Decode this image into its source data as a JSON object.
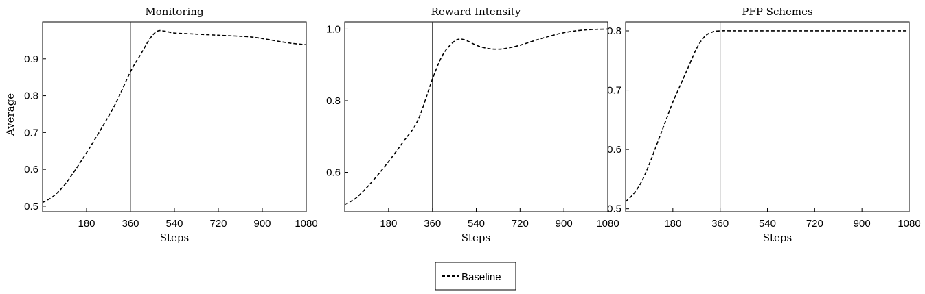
{
  "legend": {
    "entries": [
      {
        "label": "Baseline",
        "style": "dashed",
        "color": "#000000"
      }
    ]
  },
  "chart_data": [
    {
      "type": "line",
      "title": "Monitoring",
      "xlabel": "Steps",
      "ylabel": "Average",
      "xlim": [
        0,
        1080
      ],
      "ylim": [
        0.485,
        1.0
      ],
      "xticks": [
        180,
        360,
        540,
        720,
        900,
        1080
      ],
      "yticks": [
        0.5,
        0.6,
        0.7,
        0.8,
        0.9
      ],
      "xtick_labels": [
        "180",
        "360",
        "540",
        "720",
        "900",
        "1080"
      ],
      "ytick_labels": [
        "0.5",
        "0.6",
        "0.7",
        "0.8",
        "0.9"
      ],
      "vline": 360,
      "series": [
        {
          "name": "Baseline",
          "x": [
            0,
            40,
            80,
            120,
            180,
            240,
            300,
            360,
            400,
            440,
            470,
            500,
            540,
            600,
            720,
            840,
            900,
            960,
            1020,
            1080
          ],
          "y": [
            0.51,
            0.525,
            0.55,
            0.585,
            0.645,
            0.71,
            0.78,
            0.865,
            0.91,
            0.955,
            0.975,
            0.975,
            0.97,
            0.968,
            0.964,
            0.96,
            0.955,
            0.948,
            0.942,
            0.938
          ]
        }
      ]
    },
    {
      "type": "line",
      "title": "Reward Intensity",
      "xlabel": "Steps",
      "ylabel": "",
      "xlim": [
        0,
        1080
      ],
      "ylim": [
        0.49,
        1.02
      ],
      "xticks": [
        180,
        360,
        540,
        720,
        900,
        1080
      ],
      "yticks": [
        0.6,
        0.8,
        1.0
      ],
      "xtick_labels": [
        "180",
        "360",
        "540",
        "720",
        "900",
        "1080"
      ],
      "ytick_labels": [
        "0.6",
        "0.8",
        "1.0"
      ],
      "vline": 360,
      "series": [
        {
          "name": "Baseline",
          "x": [
            0,
            40,
            80,
            120,
            180,
            240,
            300,
            360,
            400,
            440,
            470,
            500,
            540,
            580,
            620,
            660,
            720,
            780,
            840,
            900,
            960,
            1020,
            1080
          ],
          "y": [
            0.51,
            0.525,
            0.55,
            0.58,
            0.63,
            0.685,
            0.745,
            0.86,
            0.925,
            0.96,
            0.972,
            0.968,
            0.955,
            0.947,
            0.944,
            0.946,
            0.955,
            0.968,
            0.98,
            0.99,
            0.996,
            0.999,
            1.0
          ]
        }
      ]
    },
    {
      "type": "line",
      "title": "PFP Schemes",
      "xlabel": "Steps",
      "ylabel": "",
      "xlim": [
        0,
        1080
      ],
      "ylim": [
        0.495,
        0.815
      ],
      "xticks": [
        180,
        360,
        540,
        720,
        900,
        1080
      ],
      "yticks": [
        0.5,
        0.6,
        0.7,
        0.8
      ],
      "xtick_labels": [
        "180",
        "360",
        "540",
        "720",
        "900",
        "1080"
      ],
      "ytick_labels": [
        "0.5",
        "0.6",
        "0.7",
        "0.8"
      ],
      "vline": 360,
      "series": [
        {
          "name": "Baseline",
          "x": [
            0,
            30,
            60,
            90,
            120,
            150,
            180,
            210,
            240,
            270,
            300,
            330,
            360,
            420,
            540,
            720,
            900,
            1080
          ],
          "y": [
            0.512,
            0.525,
            0.545,
            0.575,
            0.61,
            0.645,
            0.68,
            0.71,
            0.74,
            0.77,
            0.79,
            0.798,
            0.8,
            0.8,
            0.8,
            0.8,
            0.8,
            0.8
          ]
        }
      ]
    }
  ]
}
